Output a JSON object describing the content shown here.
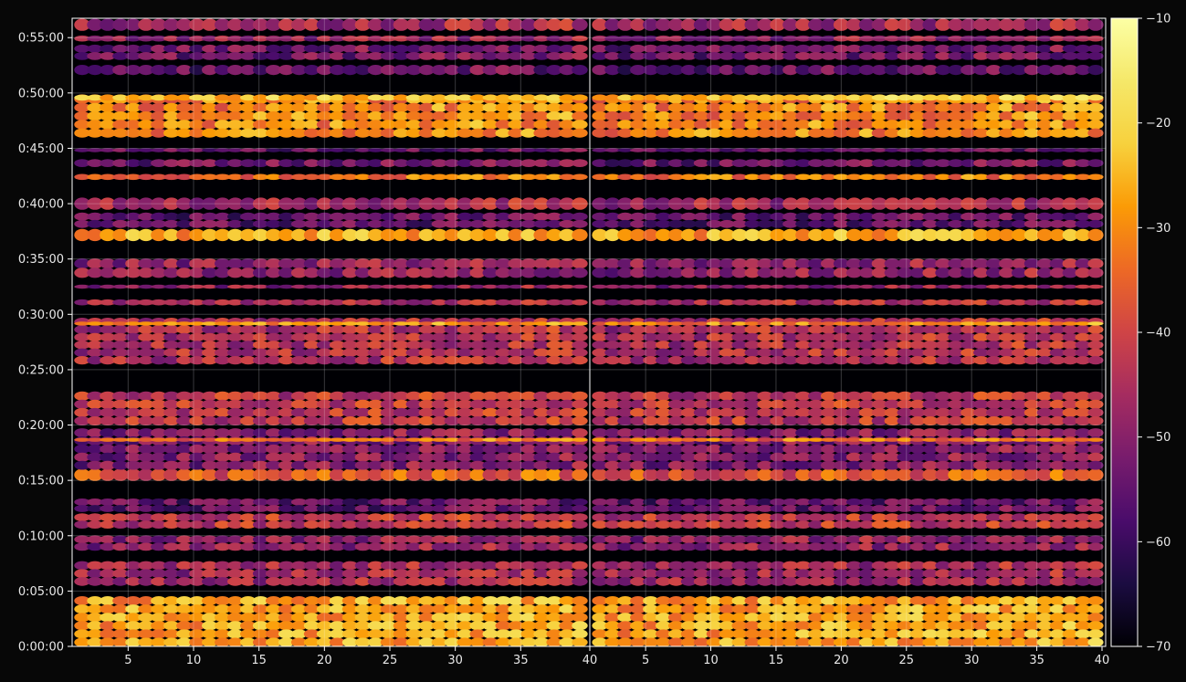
{
  "chart_data": {
    "type": "heatmap",
    "title": "",
    "xlabel": "",
    "ylabel": "",
    "panels": [
      {
        "name": "left",
        "x_range": [
          1,
          40
        ],
        "x_ticks": [
          5,
          10,
          15,
          20,
          25,
          30,
          35
        ],
        "x_tick_labels": [
          "5",
          "10",
          "15",
          "20",
          "25",
          "30",
          "35"
        ]
      },
      {
        "name": "right",
        "x_range": [
          1,
          40
        ],
        "x_ticks": [
          5,
          10,
          15,
          20,
          25,
          30,
          35,
          40
        ],
        "x_tick_labels": [
          "5",
          "10",
          "15",
          "20",
          "25",
          "30",
          "35",
          "40"
        ]
      }
    ],
    "shared_divider_label": "40",
    "y_range_seconds": [
      0,
      3405
    ],
    "y_ticks_seconds": [
      0,
      300,
      600,
      900,
      1200,
      1500,
      1800,
      2100,
      2400,
      2700,
      3000,
      3300
    ],
    "y_tick_labels": [
      "0:00:00",
      "0:05:00",
      "0:10:00",
      "0:15:00",
      "0:20:00",
      "0:25:00",
      "0:30:00",
      "0:35:00",
      "0:40:00",
      "0:45:00",
      "0:50:00",
      "0:55:00"
    ],
    "grid": true,
    "colormap": "inferno",
    "colorbar": {
      "range": [
        -70,
        -10
      ],
      "ticks": [
        -10,
        -20,
        -30,
        -40,
        -50,
        -60,
        -70
      ],
      "tick_labels": [
        "−10",
        "−20",
        "−30",
        "−40",
        "−50",
        "−60",
        "−70"
      ],
      "placement": "right"
    },
    "bands": [
      {
        "start_s": 0,
        "end_s": 270,
        "level": -28
      },
      {
        "start_s": 330,
        "end_s": 460,
        "level": -48
      },
      {
        "start_s": 520,
        "end_s": 600,
        "level": -50
      },
      {
        "start_s": 640,
        "end_s": 720,
        "level": -44
      },
      {
        "start_s": 730,
        "end_s": 800,
        "level": -56
      },
      {
        "start_s": 900,
        "end_s": 960,
        "level": -38
      },
      {
        "start_s": 960,
        "end_s": 1180,
        "level": -52
      },
      {
        "start_s": 1110,
        "end_s": 1130,
        "level": -34
      },
      {
        "start_s": 1200,
        "end_s": 1380,
        "level": -44
      },
      {
        "start_s": 1530,
        "end_s": 1780,
        "level": -46
      },
      {
        "start_s": 1740,
        "end_s": 1760,
        "level": -32
      },
      {
        "start_s": 1850,
        "end_s": 1880,
        "level": -46
      },
      {
        "start_s": 1940,
        "end_s": 1960,
        "level": -50
      },
      {
        "start_s": 2000,
        "end_s": 2100,
        "level": -50
      },
      {
        "start_s": 2200,
        "end_s": 2260,
        "level": -28
      },
      {
        "start_s": 2270,
        "end_s": 2350,
        "level": -56
      },
      {
        "start_s": 2370,
        "end_s": 2430,
        "level": -48
      },
      {
        "start_s": 2530,
        "end_s": 2560,
        "level": -34
      },
      {
        "start_s": 2600,
        "end_s": 2640,
        "level": -54
      },
      {
        "start_s": 2680,
        "end_s": 2700,
        "level": -56
      },
      {
        "start_s": 2760,
        "end_s": 2990,
        "level": -32
      },
      {
        "start_s": 2960,
        "end_s": 2990,
        "level": -24
      },
      {
        "start_s": 3100,
        "end_s": 3150,
        "level": -56
      },
      {
        "start_s": 3180,
        "end_s": 3260,
        "level": -54
      },
      {
        "start_s": 3280,
        "end_s": 3310,
        "level": -50
      },
      {
        "start_s": 3340,
        "end_s": 3400,
        "level": -48
      }
    ]
  }
}
